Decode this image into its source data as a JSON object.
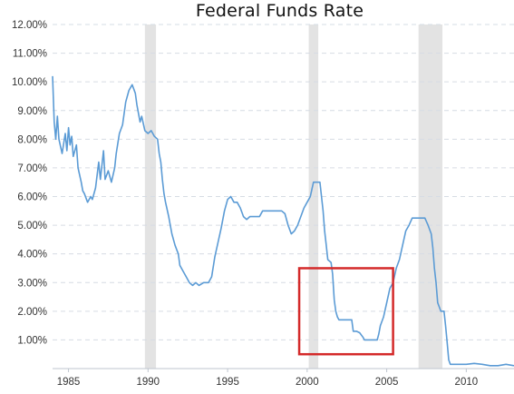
{
  "chart_data": {
    "type": "line",
    "title": "Federal Funds Rate",
    "xlabel": "",
    "ylabel": "",
    "xlim": [
      1984.0,
      2013.0
    ],
    "ylim": [
      0,
      12
    ],
    "grid": "horizontal-dashed",
    "y_ticks": [
      {
        "value": 1,
        "label": "1.00%"
      },
      {
        "value": 2,
        "label": "2.00%"
      },
      {
        "value": 3,
        "label": "3.00%"
      },
      {
        "value": 4,
        "label": "4.00%"
      },
      {
        "value": 5,
        "label": "5.00%"
      },
      {
        "value": 6,
        "label": "6.00%"
      },
      {
        "value": 7,
        "label": "7.00%"
      },
      {
        "value": 8,
        "label": "8.00%"
      },
      {
        "value": 9,
        "label": "9.00%"
      },
      {
        "value": 10,
        "label": "10.00%"
      },
      {
        "value": 11,
        "label": "11.00%"
      },
      {
        "value": 12,
        "label": "12.00%"
      }
    ],
    "x_ticks": [
      {
        "value": 1985,
        "label": "1985"
      },
      {
        "value": 1990,
        "label": "1990"
      },
      {
        "value": 1995,
        "label": "1995"
      },
      {
        "value": 2000,
        "label": "2000"
      },
      {
        "value": 2005,
        "label": "2005"
      },
      {
        "value": 2010,
        "label": "2010"
      }
    ],
    "recessions": [
      {
        "start": 1989.8,
        "end": 1990.5
      },
      {
        "start": 2000.1,
        "end": 2000.7
      },
      {
        "start": 2007.0,
        "end": 2008.5
      }
    ],
    "highlight_box": {
      "x0": 1999.5,
      "x1": 2005.4,
      "y0": 0.5,
      "y1": 3.5,
      "color": "#d42a2a"
    },
    "line_color": "#5b9bd5",
    "recession_color": "#e3e3e3",
    "series": [
      {
        "name": "",
        "points": [
          [
            1984.0,
            10.2
          ],
          [
            1984.1,
            8.6
          ],
          [
            1984.2,
            8.0
          ],
          [
            1984.3,
            8.8
          ],
          [
            1984.4,
            8.0
          ],
          [
            1984.6,
            7.5
          ],
          [
            1984.8,
            8.2
          ],
          [
            1984.9,
            7.6
          ],
          [
            1985.0,
            8.4
          ],
          [
            1985.1,
            7.8
          ],
          [
            1985.2,
            8.1
          ],
          [
            1985.3,
            7.4
          ],
          [
            1985.5,
            7.8
          ],
          [
            1985.6,
            7.0
          ],
          [
            1985.8,
            6.5
          ],
          [
            1985.9,
            6.2
          ],
          [
            1986.0,
            6.1
          ],
          [
            1986.2,
            5.8
          ],
          [
            1986.4,
            6.0
          ],
          [
            1986.5,
            5.9
          ],
          [
            1986.7,
            6.3
          ],
          [
            1986.9,
            7.2
          ],
          [
            1987.0,
            6.6
          ],
          [
            1987.2,
            7.6
          ],
          [
            1987.3,
            6.6
          ],
          [
            1987.5,
            6.9
          ],
          [
            1987.7,
            6.5
          ],
          [
            1987.9,
            7.0
          ],
          [
            1988.0,
            7.5
          ],
          [
            1988.2,
            8.2
          ],
          [
            1988.4,
            8.5
          ],
          [
            1988.6,
            9.3
          ],
          [
            1988.8,
            9.7
          ],
          [
            1989.0,
            9.9
          ],
          [
            1989.2,
            9.6
          ],
          [
            1989.3,
            9.2
          ],
          [
            1989.5,
            8.6
          ],
          [
            1989.6,
            8.8
          ],
          [
            1989.8,
            8.3
          ],
          [
            1990.0,
            8.2
          ],
          [
            1990.2,
            8.3
          ],
          [
            1990.4,
            8.1
          ],
          [
            1990.6,
            8.0
          ],
          [
            1990.7,
            7.5
          ],
          [
            1990.8,
            7.2
          ],
          [
            1990.9,
            6.6
          ],
          [
            1991.0,
            6.1
          ],
          [
            1991.1,
            5.8
          ],
          [
            1991.3,
            5.3
          ],
          [
            1991.5,
            4.7
          ],
          [
            1991.7,
            4.3
          ],
          [
            1991.9,
            4.0
          ],
          [
            1992.0,
            3.6
          ],
          [
            1992.2,
            3.4
          ],
          [
            1992.4,
            3.2
          ],
          [
            1992.6,
            3.0
          ],
          [
            1992.8,
            2.9
          ],
          [
            1993.0,
            3.0
          ],
          [
            1993.2,
            2.9
          ],
          [
            1993.5,
            3.0
          ],
          [
            1993.8,
            3.0
          ],
          [
            1994.0,
            3.2
          ],
          [
            1994.2,
            3.9
          ],
          [
            1994.4,
            4.4
          ],
          [
            1994.6,
            4.9
          ],
          [
            1994.8,
            5.5
          ],
          [
            1995.0,
            5.9
          ],
          [
            1995.2,
            6.0
          ],
          [
            1995.4,
            5.8
          ],
          [
            1995.6,
            5.8
          ],
          [
            1995.8,
            5.6
          ],
          [
            1996.0,
            5.3
          ],
          [
            1996.2,
            5.2
          ],
          [
            1996.4,
            5.3
          ],
          [
            1996.6,
            5.3
          ],
          [
            1996.8,
            5.3
          ],
          [
            1997.0,
            5.3
          ],
          [
            1997.2,
            5.5
          ],
          [
            1997.4,
            5.5
          ],
          [
            1997.6,
            5.5
          ],
          [
            1997.8,
            5.5
          ],
          [
            1998.0,
            5.5
          ],
          [
            1998.2,
            5.5
          ],
          [
            1998.4,
            5.5
          ],
          [
            1998.6,
            5.4
          ],
          [
            1998.8,
            5.0
          ],
          [
            1999.0,
            4.7
          ],
          [
            1999.2,
            4.8
          ],
          [
            1999.4,
            5.0
          ],
          [
            1999.6,
            5.3
          ],
          [
            1999.8,
            5.6
          ],
          [
            2000.0,
            5.8
          ],
          [
            2000.2,
            6.0
          ],
          [
            2000.4,
            6.5
          ],
          [
            2000.6,
            6.5
          ],
          [
            2000.8,
            6.5
          ],
          [
            2001.0,
            5.5
          ],
          [
            2001.1,
            4.8
          ],
          [
            2001.2,
            4.3
          ],
          [
            2001.3,
            3.8
          ],
          [
            2001.5,
            3.7
          ],
          [
            2001.6,
            3.3
          ],
          [
            2001.7,
            2.4
          ],
          [
            2001.8,
            2.0
          ],
          [
            2001.9,
            1.8
          ],
          [
            2002.0,
            1.7
          ],
          [
            2002.3,
            1.7
          ],
          [
            2002.6,
            1.7
          ],
          [
            2002.8,
            1.7
          ],
          [
            2002.9,
            1.3
          ],
          [
            2003.1,
            1.3
          ],
          [
            2003.3,
            1.25
          ],
          [
            2003.5,
            1.1
          ],
          [
            2003.6,
            1.0
          ],
          [
            2003.9,
            1.0
          ],
          [
            2004.2,
            1.0
          ],
          [
            2004.4,
            1.0
          ],
          [
            2004.5,
            1.2
          ],
          [
            2004.6,
            1.5
          ],
          [
            2004.8,
            1.8
          ],
          [
            2005.0,
            2.3
          ],
          [
            2005.2,
            2.8
          ],
          [
            2005.4,
            3.0
          ],
          [
            2005.6,
            3.5
          ],
          [
            2005.8,
            3.8
          ],
          [
            2006.0,
            4.3
          ],
          [
            2006.2,
            4.8
          ],
          [
            2006.4,
            5.0
          ],
          [
            2006.6,
            5.25
          ],
          [
            2006.8,
            5.25
          ],
          [
            2007.0,
            5.25
          ],
          [
            2007.2,
            5.25
          ],
          [
            2007.4,
            5.25
          ],
          [
            2007.6,
            5.0
          ],
          [
            2007.8,
            4.7
          ],
          [
            2007.9,
            4.2
          ],
          [
            2008.0,
            3.5
          ],
          [
            2008.1,
            3.0
          ],
          [
            2008.2,
            2.3
          ],
          [
            2008.4,
            2.0
          ],
          [
            2008.6,
            2.0
          ],
          [
            2008.7,
            1.5
          ],
          [
            2008.8,
            0.9
          ],
          [
            2008.9,
            0.3
          ],
          [
            2009.0,
            0.15
          ],
          [
            2009.5,
            0.15
          ],
          [
            2010.0,
            0.15
          ],
          [
            2010.5,
            0.18
          ],
          [
            2011.0,
            0.15
          ],
          [
            2011.5,
            0.1
          ],
          [
            2012.0,
            0.1
          ],
          [
            2012.5,
            0.15
          ],
          [
            2013.0,
            0.1
          ]
        ]
      }
    ]
  }
}
